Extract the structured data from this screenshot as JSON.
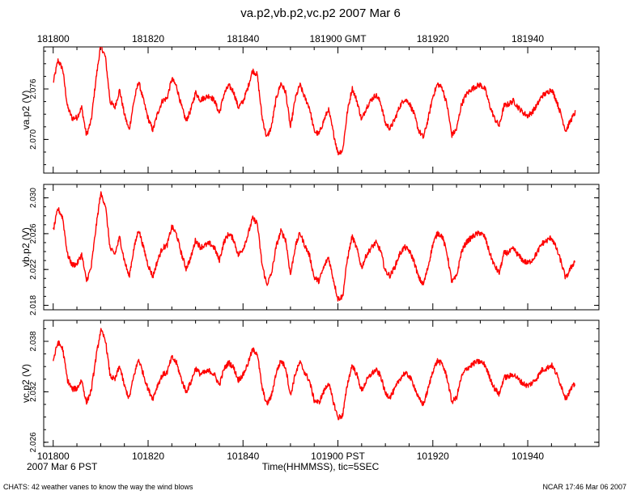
{
  "title": "va.p2,vb.p2,vc.p2 2007 Mar 6",
  "footer": {
    "left": "CHATS: 42 weather vanes to know the way the wind blows",
    "right": "NCAR 17:46 Mar 06 2007"
  },
  "colors": {
    "trace": "#ff0000",
    "axis": "#000000"
  },
  "chart_data": {
    "type": "line",
    "x_unit": "seconds after 18:18:00 GMT (10:18:00 PST)",
    "xlim": [
      -2,
      115
    ],
    "top_axis_ticks": [
      0,
      20,
      40,
      60,
      80,
      100
    ],
    "top_axis_labels": [
      "181800",
      "181820",
      "181840",
      "181900 GMT",
      "181920",
      "181940"
    ],
    "bottom_axis_ticks": [
      0,
      20,
      40,
      60,
      80,
      100
    ],
    "bottom_axis_labels": [
      "101800",
      "101820",
      "101840",
      "101900 PST",
      "101920",
      "101940"
    ],
    "xlabel": "Time(HHMMSS), tic=5SEC",
    "date_label": "2007 Mar  6 PST",
    "minor_tick_step": 5,
    "shape_x": [
      0,
      1,
      2,
      3,
      4,
      5,
      6,
      7,
      8,
      9,
      10,
      11,
      12,
      13,
      14,
      15,
      16,
      17,
      18,
      19,
      20,
      21,
      22,
      23,
      24,
      25,
      26,
      27,
      28,
      29,
      30,
      31,
      32,
      33,
      34,
      35,
      36,
      37,
      38,
      39,
      40,
      41,
      42,
      43,
      44,
      45,
      46,
      47,
      48,
      49,
      50,
      51,
      52,
      53,
      54,
      55,
      56,
      57,
      58,
      59,
      60,
      61,
      62,
      63,
      64,
      65,
      66,
      67,
      68,
      69,
      70,
      71,
      72,
      73,
      74,
      75,
      76,
      77,
      78,
      79,
      80,
      81,
      82,
      83,
      84,
      85,
      86,
      87,
      88,
      89,
      90,
      91,
      92,
      93,
      94,
      95,
      96,
      97,
      98,
      99,
      100,
      101,
      102,
      103,
      104,
      105,
      106,
      107,
      108,
      109,
      110
    ],
    "series": [
      {
        "name": "va.p2",
        "ylabel": "va.p2 (V)",
        "ylim": [
          2.066,
          2.081
        ],
        "yticks": [
          2.07,
          2.076
        ],
        "ytick_labels": [
          "2.070",
          "2.076"
        ],
        "values": [
          2.0767,
          2.0794,
          2.0784,
          2.0739,
          2.0725,
          2.0726,
          2.0738,
          2.0705,
          2.0722,
          2.0771,
          2.0812,
          2.0798,
          2.0745,
          2.0738,
          2.0759,
          2.073,
          2.0711,
          2.0745,
          2.0769,
          2.0747,
          2.0725,
          2.0711,
          2.0731,
          2.0746,
          2.0749,
          2.0772,
          2.0763,
          2.074,
          2.0722,
          2.0735,
          2.0756,
          2.0747,
          2.075,
          2.0752,
          2.0746,
          2.0731,
          2.0754,
          2.0764,
          2.0757,
          2.0738,
          2.0745,
          2.0761,
          2.0782,
          2.0777,
          2.0727,
          2.0702,
          2.0715,
          2.0749,
          2.0767,
          2.0756,
          2.0714,
          2.0748,
          2.0765,
          2.075,
          2.0738,
          2.071,
          2.0706,
          2.0722,
          2.0736,
          2.0709,
          2.0684,
          2.0687,
          2.0733,
          2.0761,
          2.0746,
          2.0723,
          2.0738,
          2.0747,
          2.0753,
          2.0744,
          2.0719,
          2.0713,
          2.0724,
          2.0739,
          2.0748,
          2.0744,
          2.0731,
          2.0711,
          2.0702,
          2.0724,
          2.0751,
          2.0766,
          2.0761,
          2.0741,
          2.0705,
          2.0712,
          2.0741,
          2.0753,
          2.0759,
          2.0763,
          2.0765,
          2.076,
          2.074,
          2.0725,
          2.0716,
          2.074,
          2.0742,
          2.0746,
          2.0738,
          2.0732,
          2.0728,
          2.0733,
          2.0741,
          2.0752,
          2.0755,
          2.076,
          2.0747,
          2.073,
          2.071,
          2.0722,
          2.0732
        ]
      },
      {
        "name": "vb.p2",
        "ylabel": "vb.p2 (V)",
        "ylim": [
          2.0175,
          2.0315
        ],
        "yticks": [
          2.018,
          2.022,
          2.026,
          2.03
        ],
        "ytick_labels": [
          "2.018",
          "2.022",
          "2.026",
          "2.030"
        ],
        "values": [
          2.0263,
          2.0288,
          2.0278,
          2.0237,
          2.0225,
          2.0226,
          2.0237,
          2.0207,
          2.0222,
          2.0266,
          2.0305,
          2.0292,
          2.0243,
          2.0237,
          2.0256,
          2.023,
          2.0212,
          2.0243,
          2.0265,
          2.0245,
          2.0225,
          2.0212,
          2.023,
          2.0244,
          2.0247,
          2.0268,
          2.0259,
          2.0238,
          2.0221,
          2.0233,
          2.0253,
          2.0245,
          2.0247,
          2.0249,
          2.0244,
          2.023,
          2.0251,
          2.026,
          2.0254,
          2.0236,
          2.0243,
          2.0258,
          2.0277,
          2.0272,
          2.0226,
          2.0203,
          2.0215,
          2.0246,
          2.0263,
          2.0253,
          2.0214,
          2.0245,
          2.0261,
          2.0247,
          2.0236,
          2.0211,
          2.0207,
          2.0222,
          2.0234,
          2.021,
          2.0187,
          2.019,
          2.0232,
          2.0257,
          2.0243,
          2.0222,
          2.0236,
          2.0244,
          2.025,
          2.0241,
          2.0218,
          2.0213,
          2.0223,
          2.0237,
          2.0245,
          2.0241,
          2.023,
          2.0211,
          2.0203,
          2.0223,
          2.0248,
          2.0261,
          2.0257,
          2.0238,
          2.0206,
          2.0212,
          2.0239,
          2.025,
          2.0255,
          2.0259,
          2.0261,
          2.0256,
          2.0238,
          2.0224,
          2.0216,
          2.0238,
          2.0239,
          2.0243,
          2.0236,
          2.023,
          2.0227,
          2.0231,
          2.0239,
          2.0249,
          2.0252,
          2.0256,
          2.0244,
          2.0229,
          2.021,
          2.0221,
          2.023
        ]
      },
      {
        "name": "vc.p2",
        "ylabel": "vc.p2 (V)",
        "ylim": [
          2.0255,
          2.0405
        ],
        "yticks": [
          2.026,
          2.032,
          2.038
        ],
        "ytick_labels": [
          "2.026",
          "2.032",
          "2.038"
        ],
        "values": [
          2.0357,
          2.0379,
          2.0371,
          2.0334,
          2.0323,
          2.0324,
          2.0334,
          2.0307,
          2.0321,
          2.036,
          2.0393,
          2.0382,
          2.0339,
          2.0334,
          2.0351,
          2.0327,
          2.0312,
          2.0339,
          2.0359,
          2.0341,
          2.0323,
          2.0312,
          2.0328,
          2.034,
          2.0343,
          2.0361,
          2.0354,
          2.0335,
          2.032,
          2.0331,
          2.0348,
          2.0341,
          2.0343,
          2.0345,
          2.034,
          2.0328,
          2.0347,
          2.0355,
          2.0349,
          2.0334,
          2.034,
          2.0353,
          2.037,
          2.0366,
          2.0325,
          2.0305,
          2.0315,
          2.0343,
          2.0357,
          2.0349,
          2.0315,
          2.0341,
          2.0355,
          2.0343,
          2.0333,
          2.031,
          2.0307,
          2.032,
          2.0331,
          2.0309,
          2.0289,
          2.0292,
          2.0329,
          2.0352,
          2.034,
          2.0321,
          2.0333,
          2.0341,
          2.0346,
          2.0339,
          2.0318,
          2.0314,
          2.0323,
          2.0335,
          2.0342,
          2.0339,
          2.0328,
          2.0312,
          2.0305,
          2.0323,
          2.0345,
          2.0357,
          2.0353,
          2.0337,
          2.0308,
          2.0313,
          2.0337,
          2.0347,
          2.0351,
          2.0355,
          2.0356,
          2.0352,
          2.0337,
          2.0324,
          2.0317,
          2.0337,
          2.0338,
          2.0341,
          2.0335,
          2.033,
          2.0327,
          2.0331,
          2.0337,
          2.0346,
          2.0348,
          2.0352,
          2.0342,
          2.0328,
          2.0312,
          2.0322,
          2.033
        ]
      }
    ]
  }
}
